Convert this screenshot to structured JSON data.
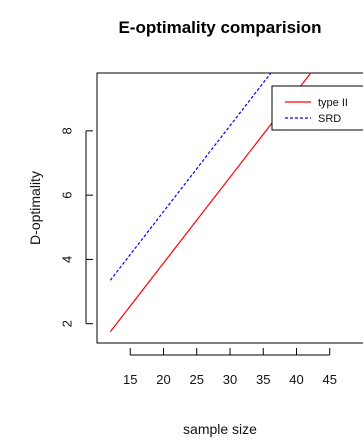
{
  "chart_data": {
    "type": "line",
    "title": "E-optimality comparision",
    "xlabel": "sample size",
    "ylabel": "D-optimality",
    "xlim": [
      10,
      50
    ],
    "ylim": [
      1.4,
      9.8
    ],
    "x_ticks": [
      15,
      20,
      25,
      30,
      35,
      40,
      45
    ],
    "y_ticks": [
      2,
      4,
      6,
      8
    ],
    "grid": false,
    "legend_position": "top-right",
    "series": [
      {
        "name": "type II",
        "color": "#ff0000",
        "line_style": "solid",
        "x": [
          12,
          50
        ],
        "y": [
          1.75,
          11.9
        ]
      },
      {
        "name": "SRD",
        "color": "#0000ff",
        "line_style": "dashed",
        "x": [
          12,
          50
        ],
        "y": [
          3.35,
          13.5
        ]
      }
    ]
  }
}
